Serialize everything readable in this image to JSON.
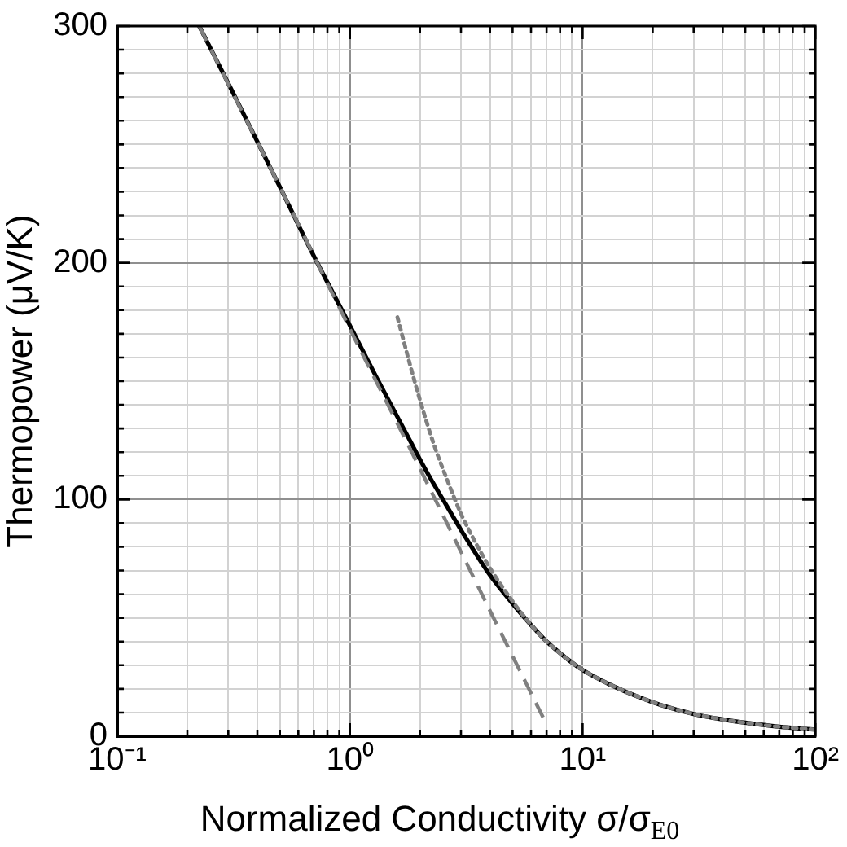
{
  "chart_data": {
    "type": "line",
    "xlabel": "Normalized Conductivity σ/σ$_{E0}$",
    "ylabel": "Thermopower (μV/K)",
    "log": "x",
    "xlim": [
      0.1,
      100
    ],
    "ylim": [
      0,
      300
    ],
    "xticks": [
      {
        "value": 0.1,
        "label": "10⁻¹"
      },
      {
        "value": 0.2,
        "label": null
      },
      {
        "value": 0.3,
        "label": null
      },
      {
        "value": 0.4,
        "label": null
      },
      {
        "value": 0.5,
        "label": null
      },
      {
        "value": 0.6,
        "label": null
      },
      {
        "value": 0.7,
        "label": null
      },
      {
        "value": 0.8,
        "label": null
      },
      {
        "value": 0.9,
        "label": null
      },
      {
        "value": 1,
        "label": "10⁰"
      },
      {
        "value": 2,
        "label": null
      },
      {
        "value": 3,
        "label": null
      },
      {
        "value": 4,
        "label": null
      },
      {
        "value": 5,
        "label": null
      },
      {
        "value": 6,
        "label": null
      },
      {
        "value": 7,
        "label": null
      },
      {
        "value": 8,
        "label": null
      },
      {
        "value": 9,
        "label": null
      },
      {
        "value": 10,
        "label": "10¹"
      },
      {
        "value": 20,
        "label": null
      },
      {
        "value": 30,
        "label": null
      },
      {
        "value": 40,
        "label": null
      },
      {
        "value": 50,
        "label": null
      },
      {
        "value": 60,
        "label": null
      },
      {
        "value": 70,
        "label": null
      },
      {
        "value": 80,
        "label": null
      },
      {
        "value": 90,
        "label": null
      },
      {
        "value": 100,
        "label": "10²"
      }
    ],
    "yticks": [
      0,
      {
        "value": 10,
        "label": null
      },
      {
        "value": 20,
        "label": null
      },
      {
        "value": 30,
        "label": null
      },
      {
        "value": 40,
        "label": null
      },
      {
        "value": 50,
        "label": null
      },
      {
        "value": 60,
        "label": null
      },
      {
        "value": 70,
        "label": null
      },
      {
        "value": 80,
        "label": null
      },
      {
        "value": 90,
        "label": null
      },
      100,
      {
        "value": 110,
        "label": null
      },
      {
        "value": 120,
        "label": null
      },
      {
        "value": 130,
        "label": null
      },
      {
        "value": 140,
        "label": null
      },
      {
        "value": 150,
        "label": null
      },
      {
        "value": 160,
        "label": null
      },
      {
        "value": 170,
        "label": null
      },
      {
        "value": 180,
        "label": null
      },
      {
        "value": 190,
        "label": null
      },
      200,
      {
        "value": 210,
        "label": null
      },
      {
        "value": 220,
        "label": null
      },
      {
        "value": 230,
        "label": null
      },
      {
        "value": 240,
        "label": null
      },
      {
        "value": 250,
        "label": null
      },
      {
        "value": 260,
        "label": null
      },
      {
        "value": 270,
        "label": null
      },
      {
        "value": 280,
        "label": null
      },
      {
        "value": 290,
        "label": null
      },
      300
    ],
    "grid": true,
    "legend": false,
    "marker": "none",
    "series": [
      {
        "color": "#000000",
        "line_style": "solid",
        "x": [
          0.225,
          0.31,
          0.5,
          0.69,
          0.97,
          1.31,
          1.7,
          2.13,
          2.58,
          3.05,
          4,
          5,
          6,
          7,
          8.5,
          10,
          13,
          17,
          22,
          30,
          40,
          50,
          70,
          100
        ],
        "values": [
          300,
          273,
          232,
          204,
          176,
          151,
          130,
          112,
          98,
          86,
          68,
          56,
          47,
          40,
          33,
          28,
          22,
          17,
          13,
          9.4,
          7.1,
          5.7,
          4,
          2.8
        ]
      },
      {
        "color": "#808080",
        "line_style": "dashed",
        "x": [
          0.225,
          0.5,
          1,
          2,
          4,
          7
        ],
        "values": [
          300,
          232,
          172,
          113,
          53,
          5
        ]
      },
      {
        "color": "#808080",
        "line_style": "dotted",
        "x": [
          1.6,
          1.8,
          2,
          2.3,
          2.6,
          3,
          3.5,
          4,
          5,
          6,
          7,
          8.5,
          10,
          13,
          17,
          22,
          30,
          40,
          50,
          70,
          100
        ],
        "values": [
          177,
          158,
          142,
          123,
          109,
          94,
          81,
          71,
          57,
          47,
          40,
          33,
          28,
          22,
          17,
          13,
          9.4,
          7.1,
          5.7,
          4,
          2.8
        ]
      }
    ]
  }
}
